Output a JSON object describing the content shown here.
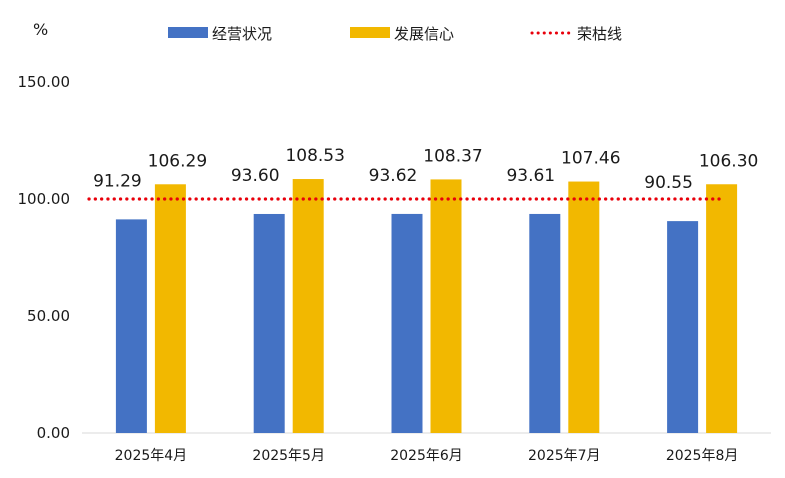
{
  "chart_data": {
    "type": "bar",
    "unit_label": "%",
    "categories": [
      "2025年4月",
      "2025年5月",
      "2025年6月",
      "2025年7月",
      "2025年8月"
    ],
    "series": [
      {
        "name": "经营状况",
        "values": [
          91.29,
          93.6,
          93.62,
          93.61,
          90.55
        ],
        "value_labels": [
          "91.29",
          "93.60",
          "93.62",
          "93.61",
          "90.55"
        ],
        "color": "#4472C4"
      },
      {
        "name": "发展信心",
        "values": [
          106.29,
          108.53,
          108.37,
          107.46,
          106.3
        ],
        "value_labels": [
          "106.29",
          "108.53",
          "108.37",
          "107.46",
          "106.30"
        ],
        "color": "#F2B800"
      }
    ],
    "reference_line": {
      "name": "荣枯线",
      "value": 100,
      "color": "#E8000B",
      "style": "dotted"
    },
    "y_ticks": [
      "0.00",
      "50.00",
      "100.00",
      "150.00"
    ],
    "ylim": [
      0,
      150
    ],
    "grid": false,
    "legend_position": "top"
  }
}
